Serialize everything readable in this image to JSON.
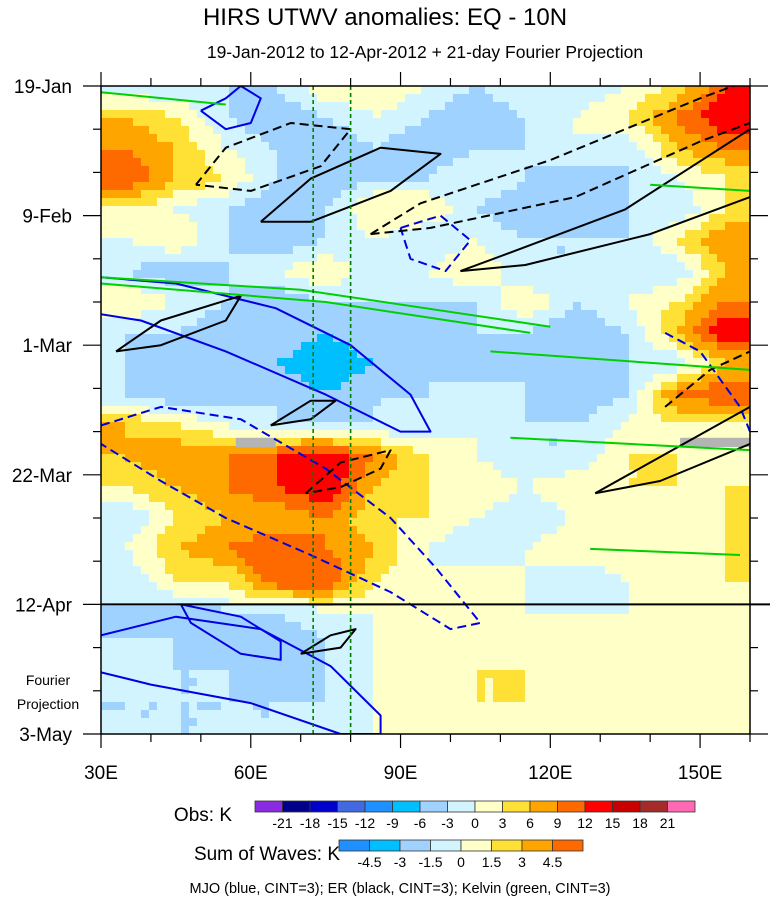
{
  "chart_data": {
    "type": "heatmap",
    "title": "HIRS UTWV anomalies: EQ - 10N",
    "subtitle": "19-Jan-2012 to 12-Apr-2012 + 21-day Fourier Projection",
    "xlim": [
      30,
      160
    ],
    "ylim_days": [
      0,
      105
    ],
    "xticks": [
      {
        "v": 30,
        "label": "30E"
      },
      {
        "v": 60,
        "label": "60E"
      },
      {
        "v": 90,
        "label": "90E"
      },
      {
        "v": 120,
        "label": "120E"
      },
      {
        "v": 150,
        "label": "150E"
      }
    ],
    "yticks": [
      {
        "v": 0,
        "label": "19-Jan"
      },
      {
        "v": 21,
        "label": "9-Feb"
      },
      {
        "v": 42,
        "label": "1-Mar"
      },
      {
        "v": 63,
        "label": "22-Mar"
      },
      {
        "v": 84,
        "label": "12-Apr"
      },
      {
        "v": 105,
        "label": "3-May"
      }
    ],
    "projection_label": [
      "Fourier",
      "Projection"
    ],
    "projection_start_day": 84,
    "reference_lines_lon": [
      72.5,
      80
    ],
    "lons": [
      35,
      45,
      55,
      65,
      75,
      85,
      95,
      105,
      115,
      125,
      135,
      145,
      155
    ],
    "days": [
      0,
      5,
      10,
      15,
      20,
      25,
      30,
      35,
      40,
      45,
      50,
      55,
      60,
      65,
      70,
      75,
      80,
      85,
      90,
      95,
      100,
      105
    ],
    "values": [
      [
        -3,
        -3,
        -3,
        -3,
        3,
        3,
        0,
        -3,
        0,
        -3,
        0,
        3,
        12
      ],
      [
        6,
        3,
        -3,
        -6,
        -3,
        0,
        -3,
        -6,
        -3,
        0,
        3,
        9,
        15
      ],
      [
        9,
        6,
        0,
        -3,
        -6,
        -3,
        -6,
        -3,
        -3,
        0,
        -3,
        6,
        9
      ],
      [
        12,
        6,
        3,
        -3,
        -6,
        -3,
        -3,
        0,
        -3,
        -6,
        -3,
        0,
        3
      ],
      [
        3,
        0,
        -3,
        -6,
        -3,
        3,
        3,
        -3,
        -6,
        -6,
        -3,
        -3,
        3
      ],
      [
        0,
        3,
        -3,
        -6,
        -3,
        0,
        -3,
        0,
        -3,
        -3,
        -3,
        3,
        9
      ],
      [
        -3,
        -6,
        -3,
        0,
        3,
        -3,
        0,
        3,
        -3,
        -3,
        -3,
        -3,
        6
      ],
      [
        3,
        0,
        -3,
        -6,
        -3,
        -3,
        -3,
        -3,
        3,
        -3,
        0,
        3,
        9
      ],
      [
        -3,
        -3,
        -6,
        -3,
        -6,
        -3,
        -6,
        -3,
        -3,
        -6,
        -3,
        6,
        15
      ],
      [
        -3,
        -6,
        -3,
        -6,
        -9,
        -6,
        -3,
        -6,
        -3,
        -6,
        -3,
        -3,
        6
      ],
      [
        -3,
        -6,
        -6,
        -3,
        -6,
        -3,
        -3,
        0,
        -3,
        -6,
        -3,
        9,
        12
      ],
      [
        6,
        3,
        0,
        -3,
        -3,
        -3,
        -3,
        0,
        -3,
        -3,
        0,
        3,
        3
      ],
      [
        6,
        9,
        9,
        12,
        15,
        9,
        3,
        0,
        -3,
        -3,
        3,
        3,
        0
      ],
      [
        3,
        6,
        9,
        12,
        15,
        6,
        3,
        3,
        0,
        3,
        3,
        3,
        3
      ],
      [
        -3,
        3,
        6,
        6,
        9,
        3,
        3,
        0,
        -3,
        0,
        3,
        0,
        3
      ],
      [
        0,
        6,
        9,
        12,
        9,
        6,
        0,
        -3,
        0,
        3,
        3,
        0,
        3
      ],
      [
        -3,
        3,
        3,
        12,
        12,
        3,
        0,
        3,
        0,
        -3,
        0,
        0,
        3
      ],
      [
        -3,
        -3,
        -1.5,
        -1.5,
        0,
        0,
        0,
        0,
        0,
        0,
        0,
        0,
        0
      ],
      [
        -1.5,
        -1.5,
        -3,
        -3,
        -1.5,
        0,
        0,
        1.5,
        0,
        0,
        0,
        0,
        0
      ],
      [
        -1.5,
        -1.5,
        -1.5,
        -3,
        -1.5,
        0,
        1.5,
        1.5,
        1.5,
        0,
        0,
        1.5,
        0
      ],
      [
        -1.5,
        -1.5,
        -1.5,
        -1.5,
        -1.5,
        0,
        0,
        1.5,
        1.5,
        0,
        0,
        0,
        1.5
      ],
      [
        -1.5,
        -1.5,
        -1.5,
        -1.5,
        0,
        0,
        0,
        0,
        0,
        0,
        0,
        0,
        0
      ]
    ],
    "contours": [
      {
        "wave": "MJO",
        "color": "#0000e0",
        "dash": false,
        "pts": [
          [
            50,
            4
          ],
          [
            55,
            2
          ],
          [
            58,
            0
          ],
          [
            62,
            2
          ],
          [
            60,
            6
          ],
          [
            55,
            7
          ],
          [
            50,
            4
          ]
        ]
      },
      {
        "wave": "MJO",
        "color": "#0000e0",
        "dash": false,
        "pts": [
          [
            30,
            31
          ],
          [
            45,
            32
          ],
          [
            65,
            36
          ],
          [
            80,
            42
          ],
          [
            92,
            50
          ],
          [
            96,
            56
          ],
          [
            90,
            56
          ],
          [
            75,
            50
          ],
          [
            55,
            43
          ],
          [
            38,
            38
          ],
          [
            30,
            37
          ]
        ]
      },
      {
        "wave": "MJO",
        "color": "#0000e0",
        "dash": true,
        "pts": [
          [
            30,
            55
          ],
          [
            42,
            52
          ],
          [
            58,
            54
          ],
          [
            75,
            62
          ],
          [
            88,
            70
          ],
          [
            97,
            78
          ],
          [
            106,
            87
          ],
          [
            100,
            88
          ],
          [
            88,
            82
          ],
          [
            72,
            76
          ],
          [
            55,
            70
          ],
          [
            42,
            64
          ],
          [
            30,
            58
          ]
        ]
      },
      {
        "wave": "MJO",
        "color": "#0000e0",
        "dash": true,
        "pts": [
          [
            90,
            23
          ],
          [
            98,
            21
          ],
          [
            104,
            25
          ],
          [
            99,
            30
          ],
          [
            92,
            28
          ],
          [
            90,
            23
          ]
        ]
      },
      {
        "wave": "MJO",
        "color": "#0000e0",
        "dash": true,
        "pts": [
          [
            143,
            40
          ],
          [
            150,
            43
          ],
          [
            158,
            52
          ],
          [
            160,
            56
          ]
        ]
      },
      {
        "wave": "MJO",
        "color": "#0000e0",
        "dash": false,
        "pts": [
          [
            46,
            84
          ],
          [
            58,
            86
          ],
          [
            66,
            90
          ],
          [
            66,
            93
          ],
          [
            58,
            92
          ],
          [
            48,
            87
          ],
          [
            46,
            84
          ]
        ]
      },
      {
        "wave": "MJO",
        "color": "#0000e0",
        "dash": false,
        "pts": [
          [
            30,
            89
          ],
          [
            45,
            86
          ],
          [
            62,
            88
          ],
          [
            76,
            94
          ],
          [
            86,
            102
          ],
          [
            86,
            105
          ],
          [
            78,
            105
          ],
          [
            60,
            100
          ],
          [
            40,
            97
          ],
          [
            30,
            95
          ]
        ]
      },
      {
        "wave": "ER",
        "color": "#000000",
        "dash": true,
        "pts": [
          [
            49,
            16
          ],
          [
            55,
            10
          ],
          [
            68,
            6
          ],
          [
            80,
            7
          ],
          [
            74,
            13
          ],
          [
            60,
            17
          ],
          [
            49,
            16
          ]
        ]
      },
      {
        "wace": "ER",
        "wave": "ER",
        "color": "#000000",
        "dash": false,
        "pts": [
          [
            62,
            22
          ],
          [
            72,
            15
          ],
          [
            86,
            10
          ],
          [
            98,
            11
          ],
          [
            88,
            17
          ],
          [
            72,
            22
          ],
          [
            62,
            22
          ]
        ]
      },
      {
        "wave": "ER",
        "color": "#000000",
        "dash": true,
        "pts": [
          [
            84,
            24
          ],
          [
            94,
            19
          ],
          [
            120,
            12
          ],
          [
            150,
            2
          ],
          [
            160,
            -1
          ]
        ]
      },
      {
        "wave": "ER",
        "color": "#000000",
        "dash": true,
        "pts": [
          [
            84,
            24
          ],
          [
            96,
            23
          ],
          [
            125,
            18
          ],
          [
            150,
            9
          ],
          [
            160,
            6
          ]
        ]
      },
      {
        "wave": "ER",
        "color": "#000000",
        "dash": false,
        "pts": [
          [
            102,
            30
          ],
          [
            112,
            27
          ],
          [
            135,
            20
          ],
          [
            160,
            7
          ]
        ]
      },
      {
        "wave": "ER",
        "color": "#000000",
        "dash": false,
        "pts": [
          [
            102,
            30
          ],
          [
            115,
            29
          ],
          [
            140,
            24
          ],
          [
            160,
            18
          ]
        ]
      },
      {
        "wave": "ER",
        "color": "#000000",
        "dash": false,
        "pts": [
          [
            33,
            43
          ],
          [
            42,
            38
          ],
          [
            58,
            34
          ],
          [
            55,
            38
          ],
          [
            42,
            42
          ],
          [
            33,
            43
          ]
        ]
      },
      {
        "wave": "ER",
        "color": "#000000",
        "dash": false,
        "pts": [
          [
            64,
            55
          ],
          [
            72,
            51
          ],
          [
            77,
            51
          ],
          [
            72,
            54
          ],
          [
            64,
            55
          ]
        ]
      },
      {
        "wave": "ER",
        "color": "#000000",
        "dash": true,
        "pts": [
          [
            71,
            66
          ],
          [
            78,
            61
          ],
          [
            88,
            59
          ],
          [
            86,
            62
          ],
          [
            78,
            65
          ],
          [
            71,
            66
          ]
        ]
      },
      {
        "wave": "ER",
        "color": "#000000",
        "dash": true,
        "pts": [
          [
            143,
            52
          ],
          [
            152,
            46
          ],
          [
            160,
            43
          ]
        ]
      },
      {
        "wave": "ER",
        "color": "#000000",
        "dash": false,
        "pts": [
          [
            129,
            66
          ],
          [
            140,
            61
          ],
          [
            160,
            52
          ]
        ]
      },
      {
        "wave": "ER",
        "color": "#000000",
        "dash": false,
        "pts": [
          [
            129,
            66
          ],
          [
            142,
            64
          ],
          [
            160,
            58
          ]
        ]
      },
      {
        "wave": "ER",
        "color": "#000000",
        "dash": false,
        "pts": [
          [
            70,
            92
          ],
          [
            76,
            89
          ],
          [
            81,
            88
          ],
          [
            78,
            91
          ],
          [
            70,
            92
          ]
        ]
      },
      {
        "wave": "Kelvin",
        "color": "#00d000",
        "dash": false,
        "pts": [
          [
            30,
            1
          ],
          [
            55,
            3
          ]
        ]
      },
      {
        "wave": "Kelvin",
        "color": "#00d000",
        "dash": false,
        "pts": [
          [
            30,
            31
          ],
          [
            70,
            33
          ],
          [
            120,
            39
          ]
        ]
      },
      {
        "wave": "Kelvin",
        "color": "#00d000",
        "dash": false,
        "pts": [
          [
            30,
            32
          ],
          [
            75,
            35
          ],
          [
            116,
            40
          ]
        ]
      },
      {
        "wave": "Kelvin",
        "color": "#00d000",
        "dash": false,
        "pts": [
          [
            108,
            43
          ],
          [
            160,
            46
          ]
        ]
      },
      {
        "wave": "Kelvin",
        "color": "#00d000",
        "dash": false,
        "pts": [
          [
            112,
            57
          ],
          [
            160,
            59
          ]
        ]
      },
      {
        "wave": "Kelvin",
        "color": "#00d000",
        "dash": false,
        "pts": [
          [
            140,
            16
          ],
          [
            160,
            17
          ]
        ]
      },
      {
        "wave": "Kelvin",
        "color": "#00d000",
        "dash": false,
        "pts": [
          [
            128,
            75
          ],
          [
            158,
            76
          ]
        ]
      },
      {
        "wave": "Kelvin",
        "color": "#00d000",
        "dash": false,
        "pts": [
          [
            45,
            84
          ],
          [
            90,
            84
          ]
        ]
      }
    ],
    "missing_regions": [
      {
        "lon": [
          57,
          65
        ],
        "day": [
          57,
          58.5
        ]
      },
      {
        "lon": [
          146,
          160
        ],
        "day": [
          57,
          58.5
        ]
      }
    ]
  },
  "legend": {
    "obs_label": "Obs: K",
    "obs_ticks": [
      "-21",
      "-18",
      "-15",
      "-12",
      "-9",
      "-6",
      "-3",
      "0",
      "3",
      "6",
      "9",
      "12",
      "15",
      "18",
      "21"
    ],
    "obs_colors": [
      "#8a2be2",
      "#00008b",
      "#0000cd",
      "#4169e1",
      "#1e90ff",
      "#00bfff",
      "#a0d2ff",
      "#d2f4ff",
      "#ffffc8",
      "#ffe034",
      "#ffa500",
      "#ff6a00",
      "#ff0000",
      "#c80000",
      "#a52a2a",
      "#ff69b4"
    ],
    "waves_label": "Sum of Waves: K",
    "waves_ticks": [
      "-4.5",
      "-3",
      "-1.5",
      "0",
      "1.5",
      "3",
      "4.5"
    ],
    "waves_colors": [
      "#1e90ff",
      "#00bfff",
      "#a0d2ff",
      "#d2f4ff",
      "#ffffc8",
      "#ffe034",
      "#ffa500",
      "#ff6a00"
    ],
    "caption": "MJO (blue, CINT=3); ER (black, CINT=3); Kelvin (green, CINT=3)"
  }
}
